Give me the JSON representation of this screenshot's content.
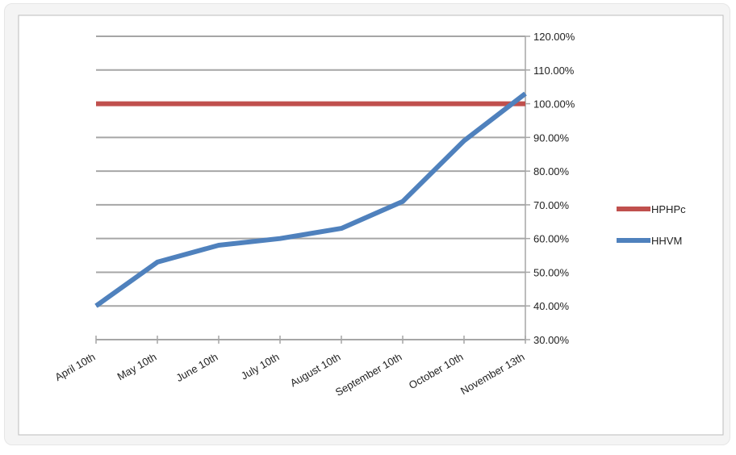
{
  "chart_data": {
    "type": "line",
    "categories": [
      "April 10th",
      "May 10th",
      "June 10th",
      "July 10th",
      "August 10th",
      "September 10th",
      "October 10th",
      "November 13th"
    ],
    "series": [
      {
        "name": "HPHPc",
        "color": "#c0504d",
        "values": [
          1.0,
          1.0,
          1.0,
          1.0,
          1.0,
          1.0,
          1.0,
          1.0
        ]
      },
      {
        "name": "HHVM",
        "color": "#4f81bd",
        "values": [
          0.4,
          0.53,
          0.58,
          0.6,
          0.63,
          0.71,
          0.89,
          1.03
        ]
      }
    ],
    "ylim": [
      0.3,
      1.2
    ],
    "y_ticks": [
      "30.00%",
      "40.00%",
      "50.00%",
      "60.00%",
      "70.00%",
      "80.00%",
      "90.00%",
      "100.00%",
      "110.00%",
      "120.00%"
    ],
    "y_axis_side": "right",
    "grid": true,
    "legend_position": "right",
    "title": "",
    "xlabel": "",
    "ylabel": ""
  }
}
